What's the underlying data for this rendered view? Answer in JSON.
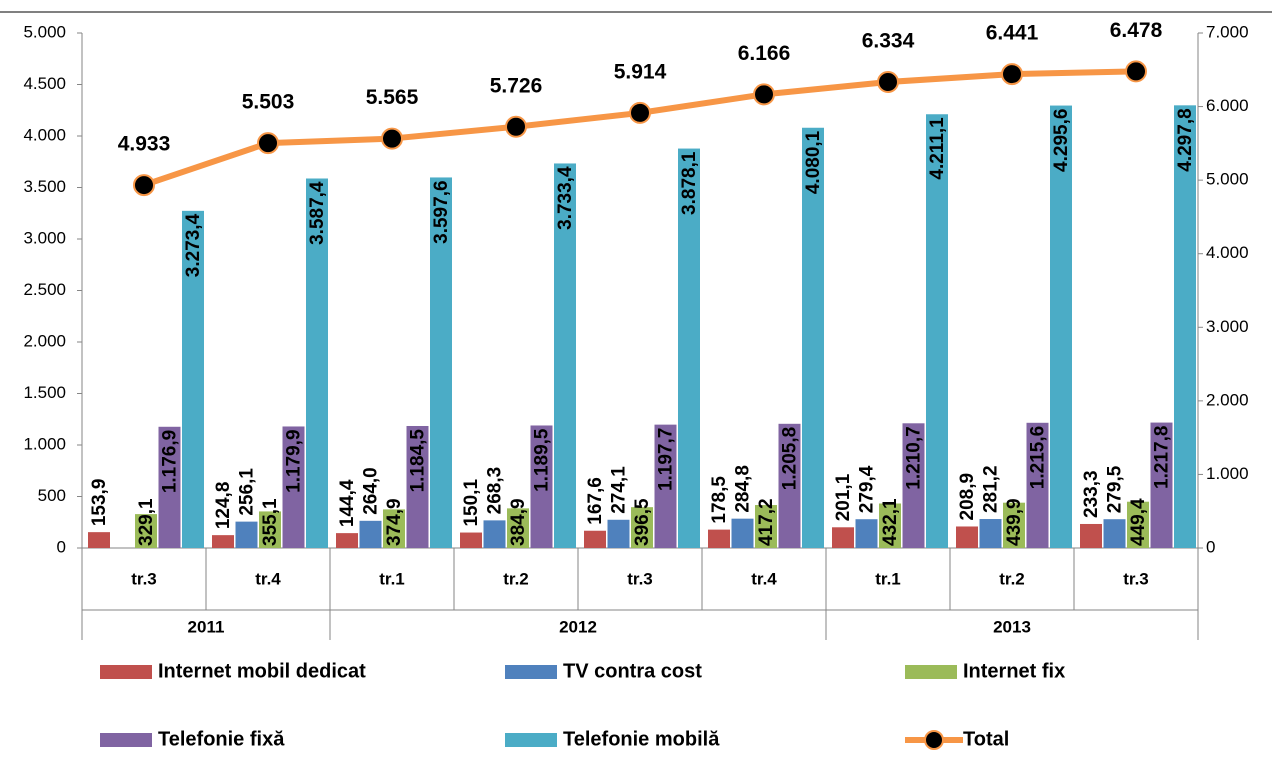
{
  "chart_data": {
    "type": "bar",
    "categories": [
      "tr.3",
      "tr.4",
      "tr.1",
      "tr.2",
      "tr.3",
      "tr.4",
      "tr.1",
      "tr.2",
      "tr.3"
    ],
    "groups": [
      {
        "label": "2011",
        "count": 2
      },
      {
        "label": "2012",
        "count": 4
      },
      {
        "label": "2013",
        "count": 3
      }
    ],
    "series": [
      {
        "name": "Internet mobil dedicat",
        "color": "#c0504d",
        "values": [
          153.9,
          124.8,
          144.4,
          150.1,
          167.6,
          178.5,
          201.1,
          208.9,
          233.3
        ],
        "value_labels": [
          "153,9",
          "124,8",
          "144,4",
          "150,1",
          "167,6",
          "178,5",
          "201,1",
          "208,9",
          "233,3"
        ]
      },
      {
        "name": "TV contra cost",
        "color": "#4f81bd",
        "values": [
          null,
          256.1,
          264.0,
          268.3,
          274.1,
          284.8,
          279.4,
          281.2,
          279.5
        ],
        "value_labels": [
          null,
          "256,1",
          "264,0",
          "268,3",
          "274,1",
          "284,8",
          "279,4",
          "281,2",
          "279,5"
        ]
      },
      {
        "name": "Internet fix",
        "color": "#9bbb59",
        "values": [
          329.1,
          355.1,
          374.9,
          384.9,
          396.5,
          417.2,
          432.1,
          439.9,
          449.4
        ],
        "value_labels": [
          "329,1",
          "355,1",
          "374,9",
          "384,9",
          "396,5",
          "417,2",
          "432,1",
          "439,9",
          "449,4"
        ]
      },
      {
        "name": "Telefonie fixă",
        "color": "#8064a2",
        "values": [
          1176.9,
          1179.9,
          1184.5,
          1189.5,
          1197.7,
          1205.8,
          1210.7,
          1215.6,
          1217.8
        ],
        "value_labels": [
          "1.176,9",
          "1.179,9",
          "1.184,5",
          "1.189,5",
          "1.197,7",
          "1.205,8",
          "1.210,7",
          "1.215,6",
          "1.217,8"
        ]
      },
      {
        "name": "Telefonie mobilă",
        "color": "#4bacc6",
        "values": [
          3273.4,
          3587.4,
          3597.6,
          3733.4,
          3878.1,
          4080.1,
          4211.1,
          4295.6,
          4297.8
        ],
        "value_labels": [
          "3.273,4",
          "3.587,4",
          "3.597,6",
          "3.733,4",
          "3.878,1",
          "4.080,1",
          "4.211,1",
          "4.295,6",
          "4.297,8"
        ]
      },
      {
        "name": "Total",
        "type": "line",
        "axis": "y2",
        "color": "#f79646",
        "values": [
          4933,
          5503,
          5565,
          5726,
          5914,
          6166,
          6334,
          6441,
          6478
        ],
        "value_labels": [
          "4.933",
          "5.503",
          "5.565",
          "5.726",
          "5.914",
          "6.166",
          "6.334",
          "6.441",
          "6.478"
        ]
      }
    ],
    "ylim": [
      0,
      5000
    ],
    "yticks": [
      0,
      500,
      {
        "value": 1000,
        "label": "1.000"
      },
      {
        "value": 1500,
        "label": "1.500"
      },
      {
        "value": 2000,
        "label": "2.000"
      },
      {
        "value": 2500,
        "label": "2.500"
      },
      {
        "value": 3000,
        "label": "3.000"
      },
      {
        "value": 3500,
        "label": "3.500"
      },
      {
        "value": 4000,
        "label": "4.000"
      },
      {
        "value": 4500,
        "label": "4.500"
      },
      {
        "value": 5000,
        "label": "5.000"
      }
    ],
    "y2lim": [
      0,
      7000
    ],
    "y2ticks": [
      0,
      {
        "value": 1000,
        "label": "1.000"
      },
      {
        "value": 2000,
        "label": "2.000"
      },
      {
        "value": 3000,
        "label": "3.000"
      },
      {
        "value": 4000,
        "label": "4.000"
      },
      {
        "value": 5000,
        "label": "5.000"
      },
      {
        "value": 6000,
        "label": "6.000"
      },
      {
        "value": 7000,
        "label": "7.000"
      }
    ]
  }
}
